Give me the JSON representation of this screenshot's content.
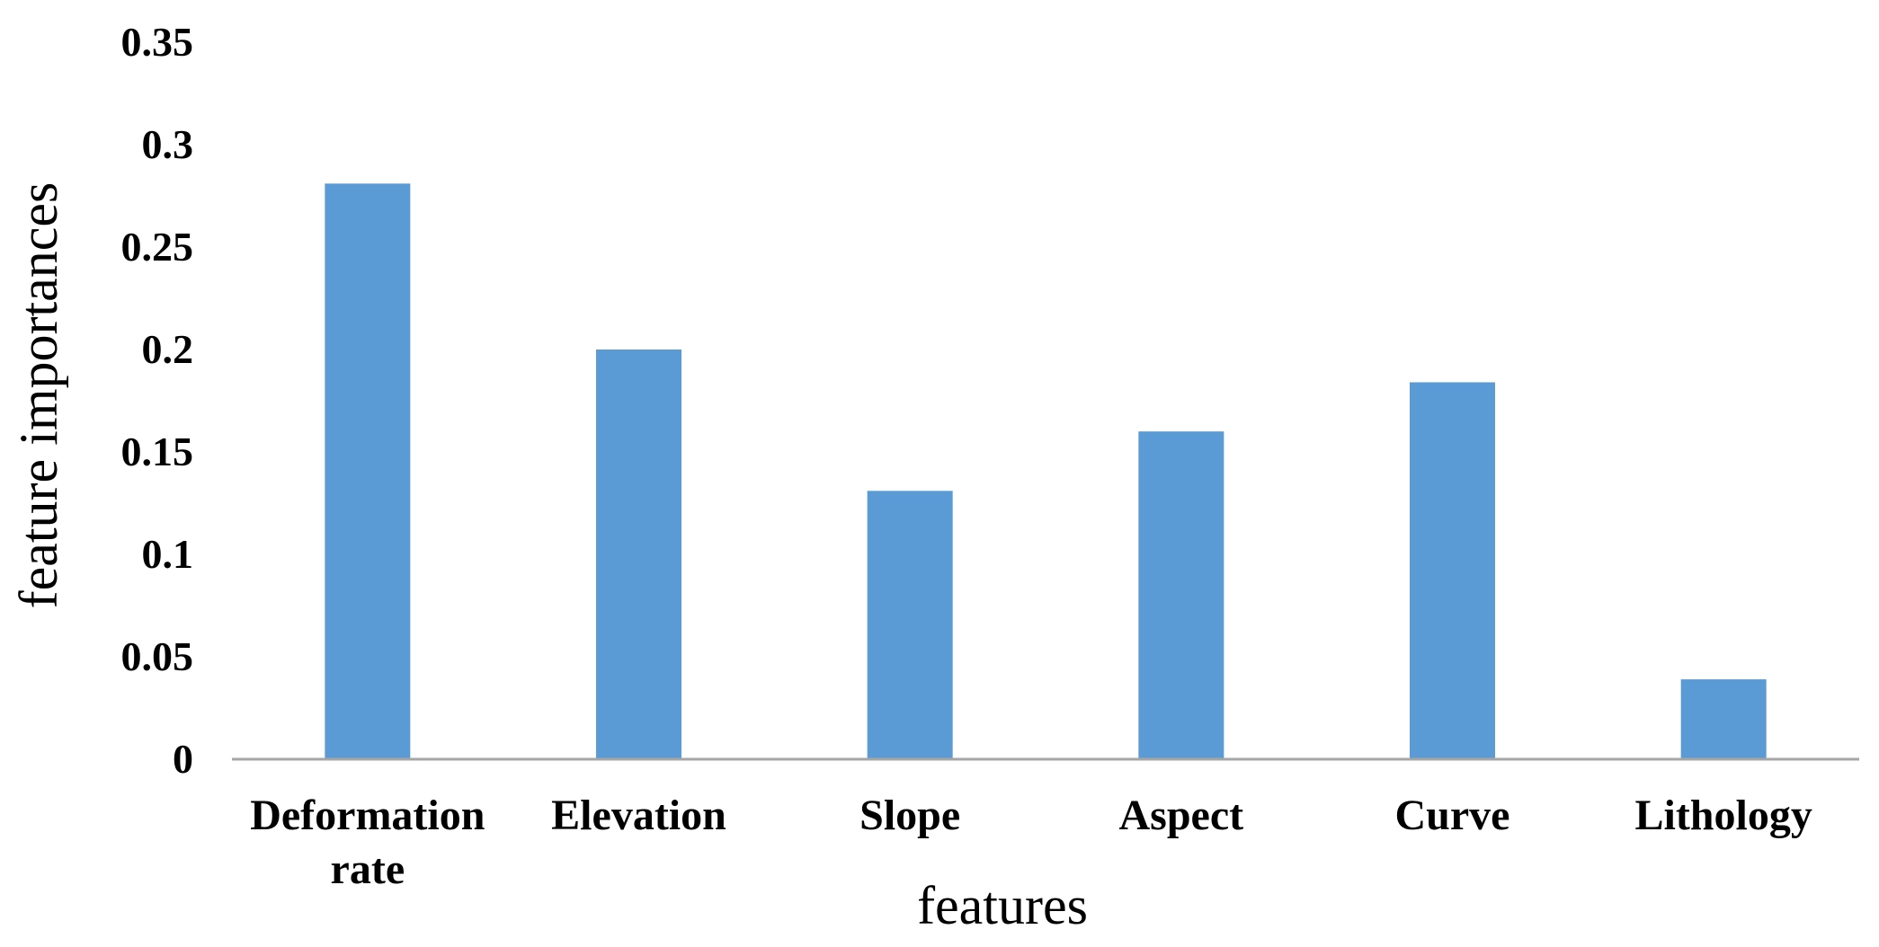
{
  "chart_data": {
    "type": "bar",
    "title": "",
    "xlabel": "features",
    "ylabel": "feature importances",
    "categories": [
      [
        "Deformation",
        "rate"
      ],
      [
        "Elevation"
      ],
      [
        "Slope"
      ],
      [
        "Aspect"
      ],
      [
        "Curve"
      ],
      [
        "Lithology"
      ]
    ],
    "values": [
      0.281,
      0.2,
      0.131,
      0.16,
      0.184,
      0.039
    ],
    "ylim": [
      0,
      0.35
    ],
    "yticks": [
      "0",
      "0.05",
      "0.1",
      "0.15",
      "0.2",
      "0.25",
      "0.3",
      "0.35"
    ],
    "grid": false,
    "legend": "none",
    "colors": {
      "bar": "#5B9BD5",
      "axis": "#A6A6A6",
      "text": "#000000"
    }
  }
}
